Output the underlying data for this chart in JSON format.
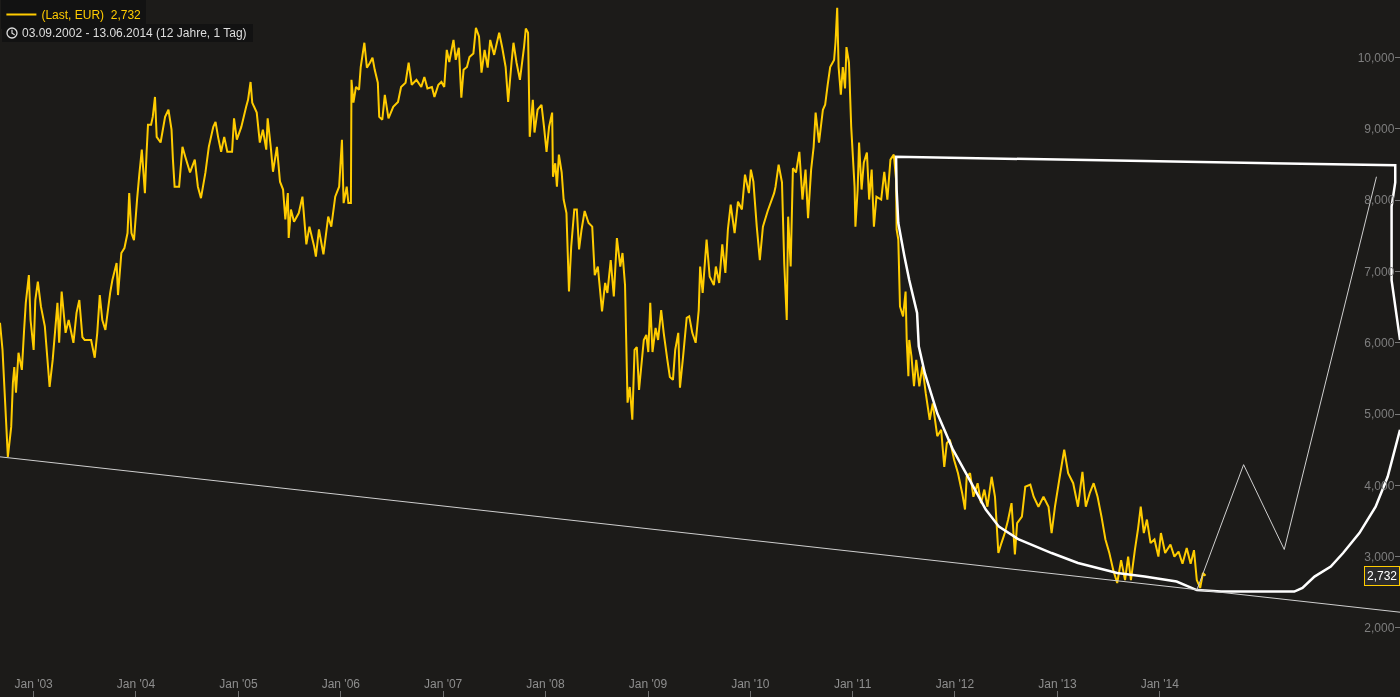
{
  "chart_data": {
    "type": "line",
    "subtitle": "03.09.2002 - 13.06.2014 (12 Jahre, 1 Tag)",
    "xlim": [
      "2002-09-03",
      "2016-05-07"
    ],
    "xticks": [
      {
        "value": "2003-01-01",
        "label": "Jan '03"
      },
      {
        "value": "2004-01-01",
        "label": "Jan '04"
      },
      {
        "value": "2005-01-01",
        "label": "Jan '05"
      },
      {
        "value": "2006-01-01",
        "label": "Jan '06"
      },
      {
        "value": "2007-01-01",
        "label": "Jan '07"
      },
      {
        "value": "2008-01-01",
        "label": "Jan '08"
      },
      {
        "value": "2009-01-01",
        "label": "Jan '09"
      },
      {
        "value": "2010-01-01",
        "label": "Jan '10"
      },
      {
        "value": "2011-01-01",
        "label": "Jan '11"
      },
      {
        "value": "2012-01-01",
        "label": "Jan '12"
      },
      {
        "value": "2013-01-01",
        "label": "Jan '13"
      },
      {
        "value": "2014-01-01",
        "label": "Jan '14"
      }
    ],
    "ylim": [
      1030,
      10810
    ],
    "yticks": [
      {
        "value": 2000,
        "label": "2,000"
      },
      {
        "value": 3000,
        "label": "3,000"
      },
      {
        "value": 4000,
        "label": "4,000"
      },
      {
        "value": 5000,
        "label": "5,000"
      },
      {
        "value": 6000,
        "label": "6,000"
      },
      {
        "value": 7000,
        "label": "7,000"
      },
      {
        "value": 8000,
        "label": "8,000"
      },
      {
        "value": 9000,
        "label": "9,000"
      },
      {
        "value": 10000,
        "label": "10,000"
      }
    ],
    "grid": false,
    "legend": "top left",
    "marker": "none",
    "line_style": "solid",
    "annotations": [
      "2,732"
    ],
    "series": [
      {
        "name": "(Last, EUR)  2,732",
        "color": "#ffcc00",
        "x": [
          "2002-09-03",
          "2002-09-12",
          "2002-10-01",
          "2002-10-13",
          "2002-10-19",
          "2002-10-24",
          "2002-10-30",
          "2002-11-08",
          "2002-11-20",
          "2002-11-28",
          "2002-12-04",
          "2002-12-15",
          "2002-12-21",
          "2003-01-01",
          "2003-01-07",
          "2003-01-16",
          "2003-01-27",
          "2003-02-10",
          "2003-02-27",
          "2003-03-10",
          "2003-03-27",
          "2003-04-02",
          "2003-04-11",
          "2003-04-25",
          "2003-05-06",
          "2003-05-23",
          "2003-06-03",
          "2003-06-13",
          "2003-06-24",
          "2003-07-02",
          "2003-07-25",
          "2003-08-07",
          "2003-08-16",
          "2003-08-25",
          "2003-09-03",
          "2003-09-14",
          "2003-10-01",
          "2003-10-09",
          "2003-10-24",
          "2003-10-29",
          "2003-11-10",
          "2003-11-21",
          "2003-12-02",
          "2003-12-08",
          "2003-12-16",
          "2003-12-25",
          "2004-01-05",
          "2004-01-13",
          "2004-01-22",
          "2004-02-02",
          "2004-02-08",
          "2004-02-13",
          "2004-02-24",
          "2004-03-01",
          "2004-03-09",
          "2004-03-15",
          "2004-03-29",
          "2004-04-14",
          "2004-04-26",
          "2004-05-07",
          "2004-05-12",
          "2004-05-18",
          "2004-06-03",
          "2004-06-15",
          "2004-06-25",
          "2004-07-12",
          "2004-07-29",
          "2004-08-09",
          "2004-08-20",
          "2004-09-05",
          "2004-09-17",
          "2004-10-03",
          "2004-10-11",
          "2004-10-20",
          "2004-10-31",
          "2004-11-11",
          "2004-11-22",
          "2004-12-09",
          "2004-12-16",
          "2004-12-26",
          "2005-01-11",
          "2005-01-28",
          "2005-02-04",
          "2005-02-13",
          "2005-02-19",
          "2005-03-07",
          "2005-03-18",
          "2005-03-29",
          "2005-04-10",
          "2005-04-15",
          "2005-04-26",
          "2005-05-04",
          "2005-05-18",
          "2005-05-29",
          "2005-06-09",
          "2005-06-17",
          "2005-06-26",
          "2005-06-29",
          "2005-07-07",
          "2005-07-18",
          "2005-08-04",
          "2005-08-17",
          "2005-08-31",
          "2005-09-11",
          "2005-09-28",
          "2005-10-04",
          "2005-10-15",
          "2005-10-31",
          "2005-11-17",
          "2005-11-28",
          "2005-12-12",
          "2005-12-26",
          "2006-01-05",
          "2006-01-11",
          "2006-01-22",
          "2006-01-28",
          "2006-02-06",
          "2006-02-08",
          "2006-02-15",
          "2006-02-24",
          "2006-03-07",
          "2006-03-13",
          "2006-03-26",
          "2006-04-04",
          "2006-04-15",
          "2006-04-24",
          "2006-05-02",
          "2006-05-13",
          "2006-05-18",
          "2006-05-29",
          "2006-06-07",
          "2006-06-20",
          "2006-07-07",
          "2006-07-24",
          "2006-08-04",
          "2006-08-20",
          "2006-08-31",
          "2006-09-11",
          "2006-09-28",
          "2006-10-15",
          "2006-10-26",
          "2006-11-06",
          "2006-11-22",
          "2006-12-01",
          "2006-12-15",
          "2006-12-26",
          "2007-01-05",
          "2007-01-14",
          "2007-01-23",
          "2007-02-07",
          "2007-02-15",
          "2007-02-26",
          "2007-03-07",
          "2007-03-15",
          "2007-03-27",
          "2007-04-05",
          "2007-04-19",
          "2007-04-28",
          "2007-05-09",
          "2007-05-18",
          "2007-05-29",
          "2007-06-09",
          "2007-06-18",
          "2007-07-02",
          "2007-07-20",
          "2007-07-31",
          "2007-08-12",
          "2007-08-21",
          "2007-09-02",
          "2007-09-09",
          "2007-09-20",
          "2007-10-02",
          "2007-10-17",
          "2007-10-23",
          "2007-10-31",
          "2007-11-06",
          "2007-11-17",
          "2007-11-23",
          "2007-12-04",
          "2007-12-18",
          "2007-12-27",
          "2008-01-05",
          "2008-01-14",
          "2008-01-25",
          "2008-01-28",
          "2008-02-05",
          "2008-02-11",
          "2008-02-18",
          "2008-02-28",
          "2008-03-06",
          "2008-03-16",
          "2008-03-25",
          "2008-04-02",
          "2008-04-13",
          "2008-04-22",
          "2008-04-30",
          "2008-05-09",
          "2008-05-20",
          "2008-06-03",
          "2008-06-16",
          "2008-06-25",
          "2008-07-06",
          "2008-07-21",
          "2008-08-01",
          "2008-08-09",
          "2008-08-21",
          "2008-09-01",
          "2008-09-12",
          "2008-09-24",
          "2008-10-02",
          "2008-10-11",
          "2008-10-20",
          "2008-10-28",
          "2008-11-06",
          "2008-11-14",
          "2008-11-22",
          "2008-11-30",
          "2008-12-17",
          "2008-12-26",
          "2009-01-02",
          "2009-01-09",
          "2009-01-17",
          "2009-01-28",
          "2009-02-06",
          "2009-02-17",
          "2009-02-26",
          "2009-03-11",
          "2009-03-20",
          "2009-03-31",
          "2009-04-08",
          "2009-04-19",
          "2009-04-25",
          "2009-05-06",
          "2009-05-19",
          "2009-05-28",
          "2009-06-08",
          "2009-06-20",
          "2009-07-01",
          "2009-07-06",
          "2009-07-15",
          "2009-07-29",
          "2009-08-09",
          "2009-08-24",
          "2009-08-31",
          "2009-09-12",
          "2009-09-23",
          "2009-10-04",
          "2009-10-13",
          "2009-10-23",
          "2009-11-06",
          "2009-11-18",
          "2009-12-02",
          "2009-12-13",
          "2009-12-27",
          "2010-01-03",
          "2010-01-12",
          "2010-01-24",
          "2010-02-04",
          "2010-02-15",
          "2010-03-04",
          "2010-03-27",
          "2010-04-01",
          "2010-04-12",
          "2010-04-24",
          "2010-05-02",
          "2010-05-11",
          "2010-05-16",
          "2010-05-25",
          "2010-06-02",
          "2010-06-13",
          "2010-06-25",
          "2010-07-06",
          "2010-07-17",
          "2010-07-26",
          "2010-08-06",
          "2010-08-15",
          "2010-08-22",
          "2010-09-03",
          "2010-09-17",
          "2010-09-25",
          "2010-10-04",
          "2010-10-13",
          "2010-10-27",
          "2010-11-01",
          "2010-11-07",
          "2010-11-12",
          "2010-11-20",
          "2010-11-27",
          "2010-12-05",
          "2010-12-10",
          "2010-12-19",
          "2010-12-27",
          "2011-01-02",
          "2011-01-08",
          "2011-01-11",
          "2011-01-19",
          "2011-01-24",
          "2011-02-02",
          "2011-02-10",
          "2011-02-21",
          "2011-03-01",
          "2011-03-10",
          "2011-03-18",
          "2011-03-27",
          "2011-04-13",
          "2011-04-24",
          "2011-05-05",
          "2011-05-16",
          "2011-05-28",
          "2011-06-05",
          "2011-06-07",
          "2011-06-13",
          "2011-06-19",
          "2011-06-30",
          "2011-07-09",
          "2011-07-13",
          "2011-07-19",
          "2011-07-22",
          "2011-07-30",
          "2011-08-08",
          "2011-08-16",
          "2011-08-27",
          "2011-09-07",
          "2011-09-19",
          "2011-10-03",
          "2011-10-14",
          "2011-10-30",
          "2011-11-13",
          "2011-11-24",
          "2011-12-03",
          "2011-12-14",
          "2011-12-29",
          "2012-01-12",
          "2012-01-27",
          "2012-02-06",
          "2012-02-12",
          "2012-02-24",
          "2012-03-07",
          "2012-03-22",
          "2012-04-03",
          "2012-04-15",
          "2012-04-26",
          "2012-05-11",
          "2012-05-23",
          "2012-06-04",
          "2012-06-15",
          "2012-06-27",
          "2012-07-09",
          "2012-07-21",
          "2012-08-02",
          "2012-08-10",
          "2012-08-27",
          "2012-09-08",
          "2012-09-26",
          "2012-10-08",
          "2012-10-25",
          "2012-11-12",
          "2012-11-30",
          "2012-12-11",
          "2012-12-23",
          "2013-01-11",
          "2013-01-25",
          "2013-02-08",
          "2013-02-26",
          "2013-03-15",
          "2013-03-31",
          "2013-04-12",
          "2013-04-26",
          "2013-05-10",
          "2013-05-24",
          "2013-06-07",
          "2013-06-21",
          "2013-07-05",
          "2013-07-19",
          "2013-08-02",
          "2013-08-16",
          "2013-08-30",
          "2013-09-10",
          "2013-09-20",
          "2013-10-04",
          "2013-10-15",
          "2013-10-25",
          "2013-11-05",
          "2013-11-16",
          "2013-11-29",
          "2013-12-13",
          "2013-12-27",
          "2014-01-05",
          "2014-01-20",
          "2014-02-08",
          "2014-02-22",
          "2014-03-09",
          "2014-03-23",
          "2014-04-07",
          "2014-04-21",
          "2014-05-03",
          "2014-05-13",
          "2014-05-25",
          "2014-06-04",
          "2014-06-13"
        ],
        "values": [
          6280,
          5900,
          4400,
          4820,
          5440,
          5660,
          5300,
          5860,
          5620,
          6180,
          6560,
          6950,
          6320,
          5900,
          6600,
          6860,
          6510,
          6230,
          5380,
          5760,
          6560,
          6000,
          6720,
          6140,
          6320,
          6000,
          6420,
          6600,
          6080,
          6040,
          6040,
          5790,
          6140,
          6670,
          6320,
          6180,
          6700,
          6880,
          7120,
          6670,
          7260,
          7330,
          7540,
          8100,
          7540,
          7440,
          8010,
          8360,
          8710,
          8100,
          8670,
          9060,
          9060,
          9170,
          9450,
          8890,
          8810,
          9170,
          9270,
          8990,
          8570,
          8190,
          8190,
          8750,
          8610,
          8390,
          8570,
          8190,
          8030,
          8390,
          8750,
          9030,
          9100,
          8890,
          8680,
          8890,
          8680,
          8680,
          9150,
          8850,
          9030,
          9310,
          9410,
          9660,
          9370,
          9230,
          8810,
          8990,
          8710,
          9150,
          8750,
          8400,
          8750,
          8260,
          8150,
          7730,
          8100,
          7470,
          7870,
          7700,
          7820,
          8050,
          7380,
          7630,
          7350,
          7210,
          7590,
          7240,
          7770,
          7630,
          8050,
          8190,
          8850,
          7960,
          8190,
          7960,
          7960,
          9690,
          9370,
          9590,
          9550,
          9870,
          10210,
          9860,
          9930,
          10000,
          9830,
          9650,
          9170,
          9130,
          9480,
          9150,
          9310,
          9380,
          9590,
          9650,
          9930,
          9620,
          9690,
          9590,
          9730,
          9570,
          9590,
          9450,
          9620,
          9660,
          9590,
          10110,
          9940,
          10250,
          9970,
          10140,
          9440,
          9830,
          9870,
          10010,
          10060,
          10420,
          10300,
          9790,
          10110,
          9860,
          10250,
          10040,
          10350,
          10140,
          9870,
          9380,
          9930,
          10210,
          9930,
          9690,
          10160,
          10410,
          10350,
          8890,
          9410,
          8950,
          9270,
          9340,
          9030,
          8680,
          9030,
          9230,
          8330,
          8520,
          8190,
          8640,
          8390,
          8010,
          7820,
          6720,
          7350,
          7870,
          7870,
          7310,
          7590,
          7850,
          7680,
          7630,
          6950,
          7070,
          6440,
          6840,
          6700,
          7160,
          6650,
          7470,
          7070,
          7260,
          6810,
          5160,
          5380,
          4920,
          5900,
          5940,
          5340,
          6040,
          6110,
          5870,
          6560,
          5870,
          6210,
          6040,
          6460,
          6140,
          5760,
          5520,
          5480,
          5900,
          6140,
          5370,
          5800,
          6350,
          6370,
          6140,
          6000,
          6460,
          7070,
          6700,
          7450,
          6930,
          6810,
          7070,
          6840,
          7380,
          6980,
          7590,
          7940,
          7540,
          7980,
          7870,
          8360,
          8100,
          8430,
          8260,
          7630,
          7160,
          7630,
          7850,
          8100,
          8190,
          8500,
          8250,
          7120,
          6320,
          7770,
          7070,
          8450,
          8390,
          8680,
          8010,
          8430,
          7750,
          8430,
          8750,
          9230,
          8810,
          9270,
          9340,
          9620,
          9870,
          9970,
          10220,
          10700,
          9870,
          9480,
          9870,
          9570,
          10150,
          9930,
          9030,
          8610,
          8190,
          7630,
          8150,
          8810,
          8150,
          8530,
          8670,
          8010,
          8430,
          7630,
          8050,
          8010,
          8400,
          8010,
          8570,
          8640,
          8290,
          7590,
          7450,
          6510,
          6370,
          6720,
          6040,
          5530,
          6040,
          5810,
          5390,
          5760,
          5390,
          5670,
          5290,
          4920,
          5150,
          4690,
          4780,
          4260,
          4590,
          4640,
          4360,
          4170,
          3890,
          3660,
          4120,
          4170,
          3840,
          4030,
          3750,
          3940,
          3700,
          4120,
          3840,
          3050,
          3190,
          3330,
          3520,
          3750,
          3030,
          3470,
          3560,
          3980,
          4010,
          3840,
          3700,
          3840,
          3700,
          3330,
          3700,
          4170,
          4500,
          4170,
          4030,
          3700,
          4190,
          3700,
          3890,
          4030,
          3840,
          3560,
          3240,
          3050,
          2810,
          2630,
          2950,
          2670,
          3000,
          2670,
          3090,
          3380,
          3700,
          3330,
          3520,
          3190,
          3240,
          3000,
          3330,
          3050,
          3170,
          3000,
          3070,
          2900,
          3120,
          2900,
          3090,
          2670,
          2560,
          2770,
          2732
        ]
      },
      {
        "color": "#ffffff",
        "x": [
          "2016-05-07",
          "2016-04-07",
          "2016-04-07",
          "2016-04-20",
          "2016-04-20",
          "2011-06-05",
          "2011-06-07",
          "2011-06-13",
          "2011-07-05",
          "2011-07-22",
          "2011-08-19",
          "2011-08-25",
          "2011-09-16",
          "2011-10-30",
          "2011-12-25",
          "2012-02-22",
          "2012-04-20",
          "2012-06-06",
          "2012-08-16",
          "2012-12-11",
          "2013-03-15",
          "2013-08-02",
          "2013-11-08",
          "2014-03-02",
          "2014-05-13",
          "2014-08-08",
          "2015-04-26",
          "2015-05-25",
          "2015-07-07",
          "2015-09-03",
          "2015-10-17",
          "2015-12-14",
          "2016-02-10",
          "2016-03-24",
          "2016-05-07"
        ],
        "values": [
          6040,
          6880,
          7910,
          8250,
          8490,
          8610,
          8150,
          7680,
          7210,
          6880,
          6420,
          5950,
          5570,
          5010,
          4500,
          4080,
          3660,
          3420,
          3240,
          3050,
          2910,
          2770,
          2720,
          2650,
          2530,
          2510,
          2510,
          2560,
          2720,
          2860,
          3050,
          3330,
          3700,
          4120,
          4780
        ]
      },
      {
        "color": "#cfcfcf",
        "x": [
          "2002-09-03",
          "2016-05-07"
        ],
        "values": [
          4400,
          2220
        ]
      },
      {
        "color": "#cfcfcf",
        "x": [
          "2014-05-13",
          "2014-10-27",
          "2015-03-21",
          "2016-02-13"
        ],
        "values": [
          2530,
          4290,
          3100,
          8330
        ]
      }
    ]
  }
}
